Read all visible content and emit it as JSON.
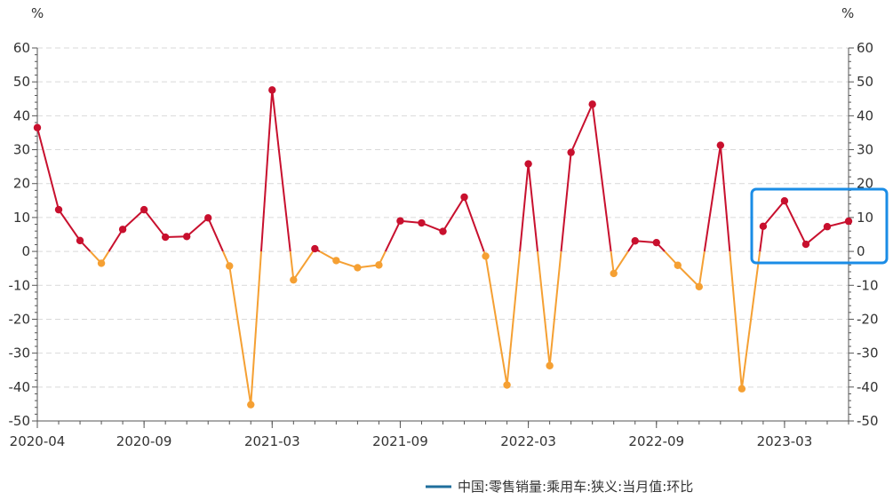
{
  "chart_data": {
    "type": "line",
    "x_tick_labels": [
      "2020-04",
      "2020-09",
      "2021-03",
      "2021-09",
      "2022-03",
      "2022-09",
      "2023-03"
    ],
    "x": [
      "2020-04",
      "2020-05",
      "2020-06",
      "2020-07",
      "2020-08",
      "2020-09",
      "2020-10",
      "2020-11",
      "2020-12",
      "2021-01",
      "2021-02",
      "2021-03",
      "2021-04",
      "2021-05",
      "2021-06",
      "2021-07",
      "2021-08",
      "2021-09",
      "2021-10",
      "2021-11",
      "2021-12",
      "2022-01",
      "2022-02",
      "2022-03",
      "2022-04",
      "2022-05",
      "2022-06",
      "2022-07",
      "2022-08",
      "2022-09",
      "2022-10",
      "2022-11",
      "2022-12",
      "2023-01",
      "2023-02",
      "2023-03",
      "2023-04",
      "2023-05",
      "2023-06"
    ],
    "series": [
      {
        "name": "中国:零售销量:乘用车:狭义:当月值:环比",
        "values": [
          36.5,
          12.3,
          3.2,
          -3.5,
          6.5,
          12.3,
          4.2,
          4.4,
          9.9,
          -4.3,
          -45.2,
          47.6,
          -8.4,
          0.8,
          -2.7,
          -4.8,
          -4.0,
          9.0,
          8.4,
          5.9,
          16.0,
          -1.4,
          -39.4,
          25.8,
          -33.7,
          29.2,
          43.4,
          -6.5,
          3.1,
          2.6,
          -4.1,
          -10.4,
          31.3,
          -40.5,
          7.4,
          14.9,
          2.1,
          7.3,
          8.9
        ]
      }
    ],
    "ylim": [
      -50,
      60
    ],
    "yticks": [
      -50,
      -40,
      -30,
      -20,
      -10,
      0,
      10,
      20,
      30,
      40,
      50,
      60
    ],
    "ylabel_left": "%",
    "ylabel_right": "%",
    "grid": true,
    "legend_position": "bottom-center",
    "colors": {
      "positive": "#c8102e",
      "negative": "#f5a033",
      "legend_line": "#1f6e9c",
      "highlight_box": "#1a8ce6",
      "grid": "#d9d9d9",
      "axis": "#555555"
    },
    "annotation": "highlight box around the last 5 points (2023-02 to 2023-06)"
  }
}
